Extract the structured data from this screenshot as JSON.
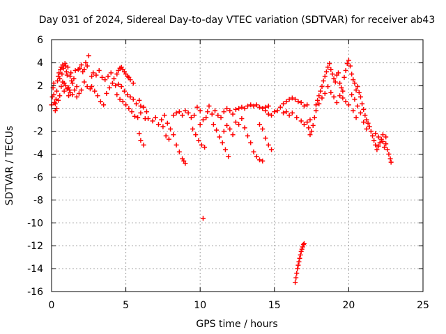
{
  "chart_data": {
    "type": "scatter",
    "title": "Day 031 of 2024, Sidereal Day-to-day VTEC variation (SDTVAR) for receiver ab43",
    "xlabel": "GPS time / hours",
    "ylabel": "SDTVAR / TECUs",
    "xlim": [
      0,
      25
    ],
    "ylim": [
      -16,
      6
    ],
    "xticks": [
      0,
      5,
      10,
      15,
      20,
      25
    ],
    "xtick_labels": [
      "0",
      "5",
      "10",
      "15",
      "20",
      "25"
    ],
    "yticks": [
      -16,
      -14,
      -12,
      -10,
      -8,
      -6,
      -4,
      -2,
      0,
      2,
      4,
      6
    ],
    "ytick_labels": [
      "-16",
      "-14",
      "-12",
      "-10",
      "-8",
      "-6",
      "-4",
      "-2",
      "0",
      "2",
      "4",
      "6"
    ],
    "grid": true,
    "marker": "+",
    "color": "#ff0000",
    "series": [
      {
        "name": "SDTVAR",
        "points": [
          [
            0.0,
            0.3
          ],
          [
            0.05,
            1.0
          ],
          [
            0.1,
            1.8
          ],
          [
            0.15,
            2.2
          ],
          [
            0.2,
            0.5
          ],
          [
            0.25,
            -0.2
          ],
          [
            0.3,
            0.8
          ],
          [
            0.35,
            1.5
          ],
          [
            0.4,
            2.4
          ],
          [
            0.45,
            2.8
          ],
          [
            0.5,
            3.1
          ],
          [
            0.55,
            2.6
          ],
          [
            0.6,
            3.4
          ],
          [
            0.65,
            3.6
          ],
          [
            0.7,
            3.0
          ],
          [
            0.75,
            3.8
          ],
          [
            0.8,
            3.5
          ],
          [
            0.85,
            2.2
          ],
          [
            0.9,
            3.9
          ],
          [
            0.95,
            3.7
          ],
          [
            1.0,
            3.2
          ],
          [
            1.05,
            2.9
          ],
          [
            1.1,
            3.6
          ],
          [
            1.15,
            1.8
          ],
          [
            1.2,
            1.6
          ],
          [
            1.25,
            2.8
          ],
          [
            1.3,
            3.1
          ],
          [
            1.35,
            2.4
          ],
          [
            1.4,
            2.2
          ],
          [
            1.5,
            2.6
          ],
          [
            1.6,
            3.3
          ],
          [
            1.7,
            1.9
          ],
          [
            1.8,
            3.4
          ],
          [
            1.9,
            3.5
          ],
          [
            2.0,
            3.8
          ],
          [
            2.1,
            3.2
          ],
          [
            2.2,
            3.4
          ],
          [
            2.3,
            4.0
          ],
          [
            2.4,
            3.7
          ],
          [
            2.5,
            4.6
          ],
          [
            0.15,
            1.2
          ],
          [
            0.25,
            0.4
          ],
          [
            0.35,
            0.0
          ],
          [
            0.45,
            0.7
          ],
          [
            0.55,
            1.1
          ],
          [
            0.65,
            1.9
          ],
          [
            0.75,
            2.3
          ],
          [
            0.85,
            1.5
          ],
          [
            0.95,
            2.0
          ],
          [
            1.05,
            1.7
          ],
          [
            1.15,
            1.1
          ],
          [
            1.25,
            1.4
          ],
          [
            1.4,
            1.2
          ],
          [
            1.55,
            1.6
          ],
          [
            1.7,
            1.0
          ],
          [
            1.85,
            1.3
          ],
          [
            2.0,
            1.6
          ],
          [
            2.2,
            2.3
          ],
          [
            2.4,
            1.9
          ],
          [
            2.6,
            1.7
          ],
          [
            2.7,
            2.8
          ],
          [
            2.8,
            3.1
          ],
          [
            3.0,
            2.9
          ],
          [
            3.2,
            3.3
          ],
          [
            3.4,
            2.7
          ],
          [
            3.6,
            2.5
          ],
          [
            3.8,
            2.8
          ],
          [
            4.0,
            3.1
          ],
          [
            4.2,
            2.6
          ],
          [
            4.4,
            3.0
          ],
          [
            4.5,
            3.3
          ],
          [
            4.6,
            3.5
          ],
          [
            4.7,
            3.6
          ],
          [
            4.8,
            3.4
          ],
          [
            4.9,
            3.2
          ],
          [
            5.0,
            3.0
          ],
          [
            5.1,
            2.8
          ],
          [
            5.2,
            2.7
          ],
          [
            5.3,
            2.5
          ],
          [
            5.5,
            2.2
          ],
          [
            2.7,
            1.9
          ],
          [
            2.9,
            1.5
          ],
          [
            3.1,
            1.1
          ],
          [
            3.3,
            0.6
          ],
          [
            3.5,
            0.3
          ],
          [
            3.7,
            1.3
          ],
          [
            3.9,
            1.8
          ],
          [
            4.1,
            2.2
          ],
          [
            4.3,
            2.0
          ],
          [
            4.5,
            2.1
          ],
          [
            4.7,
            1.9
          ],
          [
            4.9,
            1.5
          ],
          [
            5.1,
            1.2
          ],
          [
            5.3,
            1.0
          ],
          [
            5.5,
            0.8
          ],
          [
            5.7,
            0.4
          ],
          [
            5.9,
            0.7
          ],
          [
            6.0,
            0.2
          ],
          [
            6.2,
            0.1
          ],
          [
            6.4,
            -0.3
          ],
          [
            4.4,
            1.2
          ],
          [
            4.6,
            0.8
          ],
          [
            4.8,
            0.6
          ],
          [
            5.0,
            0.3
          ],
          [
            5.2,
            0.0
          ],
          [
            5.4,
            -0.3
          ],
          [
            5.6,
            -0.7
          ],
          [
            5.8,
            -0.8
          ],
          [
            6.0,
            -0.4
          ],
          [
            6.3,
            -0.9
          ],
          [
            5.9,
            -2.2
          ],
          [
            6.0,
            -2.8
          ],
          [
            6.2,
            -3.2
          ],
          [
            6.5,
            -0.9
          ],
          [
            6.8,
            -1.1
          ],
          [
            7.0,
            -0.8
          ],
          [
            7.2,
            -1.4
          ],
          [
            7.4,
            -1.0
          ],
          [
            7.6,
            -0.6
          ],
          [
            7.8,
            -1.3
          ],
          [
            7.5,
            -1.6
          ],
          [
            7.7,
            -2.4
          ],
          [
            7.9,
            -2.7
          ],
          [
            8.0,
            -1.8
          ],
          [
            8.2,
            -2.3
          ],
          [
            8.4,
            -3.2
          ],
          [
            8.6,
            -3.8
          ],
          [
            8.8,
            -4.4
          ],
          [
            9.0,
            -4.8
          ],
          [
            8.9,
            -4.6
          ],
          [
            8.2,
            -0.6
          ],
          [
            8.4,
            -0.4
          ],
          [
            8.6,
            -0.3
          ],
          [
            8.8,
            -0.6
          ],
          [
            9.0,
            -0.2
          ],
          [
            9.2,
            -0.4
          ],
          [
            9.4,
            -0.8
          ],
          [
            9.6,
            -0.6
          ],
          [
            9.8,
            0.1
          ],
          [
            10.0,
            -0.2
          ],
          [
            9.5,
            -1.8
          ],
          [
            9.7,
            -2.3
          ],
          [
            9.9,
            -2.8
          ],
          [
            10.1,
            -3.2
          ],
          [
            10.3,
            -3.4
          ],
          [
            10.0,
            -1.4
          ],
          [
            10.2,
            -1.0
          ],
          [
            10.4,
            -0.8
          ],
          [
            10.5,
            -0.3
          ],
          [
            10.6,
            0.2
          ],
          [
            10.8,
            -0.5
          ],
          [
            11.0,
            -0.2
          ],
          [
            11.2,
            -0.6
          ],
          [
            11.4,
            -0.8
          ],
          [
            11.6,
            -0.3
          ],
          [
            11.8,
            0.0
          ],
          [
            12.0,
            -0.2
          ],
          [
            12.2,
            -0.5
          ],
          [
            12.4,
            -0.1
          ],
          [
            12.6,
            0.0
          ],
          [
            10.9,
            -1.4
          ],
          [
            11.1,
            -1.9
          ],
          [
            11.3,
            -2.5
          ],
          [
            11.5,
            -3.0
          ],
          [
            11.7,
            -3.6
          ],
          [
            11.9,
            -4.2
          ],
          [
            11.6,
            -2.0
          ],
          [
            11.8,
            -1.5
          ],
          [
            12.0,
            -1.8
          ],
          [
            12.2,
            -2.3
          ],
          [
            12.4,
            -1.2
          ],
          [
            12.6,
            -1.4
          ],
          [
            12.8,
            -0.9
          ],
          [
            13.0,
            -1.7
          ],
          [
            13.2,
            -2.4
          ],
          [
            13.4,
            -3.0
          ],
          [
            13.6,
            -3.8
          ],
          [
            13.8,
            -4.2
          ],
          [
            14.0,
            -4.5
          ],
          [
            14.2,
            -4.6
          ],
          [
            12.8,
            0.1
          ],
          [
            13.0,
            0.0
          ],
          [
            13.2,
            0.2
          ],
          [
            13.4,
            0.3
          ],
          [
            13.6,
            0.2
          ],
          [
            13.8,
            0.3
          ],
          [
            14.0,
            0.1
          ],
          [
            14.2,
            0.0
          ],
          [
            14.4,
            0.1
          ],
          [
            14.6,
            0.2
          ],
          [
            14.0,
            -1.4
          ],
          [
            14.2,
            -1.8
          ],
          [
            14.4,
            -2.6
          ],
          [
            14.6,
            -3.2
          ],
          [
            14.8,
            -3.6
          ],
          [
            14.4,
            -0.2
          ],
          [
            14.6,
            -0.5
          ],
          [
            14.8,
            -0.6
          ],
          [
            15.0,
            -0.3
          ],
          [
            15.2,
            -0.2
          ],
          [
            15.4,
            0.1
          ],
          [
            15.6,
            0.4
          ],
          [
            15.8,
            0.6
          ],
          [
            16.0,
            0.8
          ],
          [
            16.2,
            0.9
          ],
          [
            16.4,
            0.8
          ],
          [
            16.6,
            0.6
          ],
          [
            16.8,
            0.5
          ],
          [
            17.0,
            0.2
          ],
          [
            17.2,
            0.3
          ],
          [
            15.6,
            -0.4
          ],
          [
            15.8,
            -0.3
          ],
          [
            16.0,
            -0.6
          ],
          [
            16.2,
            -0.4
          ],
          [
            16.5,
            -0.8
          ],
          [
            16.8,
            -1.1
          ],
          [
            17.0,
            -1.4
          ],
          [
            17.2,
            -1.2
          ],
          [
            17.4,
            -1.0
          ],
          [
            17.5,
            -2.0
          ],
          [
            17.3,
            -1.7
          ],
          [
            17.4,
            -2.3
          ],
          [
            17.6,
            -1.5
          ],
          [
            17.7,
            -0.8
          ],
          [
            17.8,
            0.3
          ],
          [
            17.9,
            0.7
          ],
          [
            18.0,
            1.1
          ],
          [
            18.1,
            1.5
          ],
          [
            18.2,
            1.9
          ],
          [
            18.3,
            2.4
          ],
          [
            18.4,
            2.8
          ],
          [
            18.5,
            3.2
          ],
          [
            18.6,
            3.6
          ],
          [
            18.7,
            3.9
          ],
          [
            18.8,
            3.4
          ],
          [
            18.9,
            3.0
          ],
          [
            19.0,
            2.6
          ],
          [
            19.1,
            2.3
          ],
          [
            19.2,
            2.9
          ],
          [
            19.3,
            3.1
          ],
          [
            19.4,
            2.2
          ],
          [
            19.5,
            1.8
          ],
          [
            19.6,
            1.5
          ],
          [
            19.7,
            2.7
          ],
          [
            19.8,
            3.3
          ],
          [
            19.9,
            3.9
          ],
          [
            20.0,
            4.2
          ],
          [
            20.1,
            3.7
          ],
          [
            20.2,
            3.0
          ],
          [
            20.3,
            2.5
          ],
          [
            20.4,
            2.2
          ],
          [
            20.5,
            1.6
          ],
          [
            20.6,
            1.9
          ],
          [
            20.7,
            1.4
          ],
          [
            20.8,
            1.0
          ],
          [
            20.9,
            0.4
          ],
          [
            21.0,
            -0.1
          ],
          [
            21.1,
            -0.6
          ],
          [
            21.2,
            -1.0
          ],
          [
            21.3,
            -1.3
          ],
          [
            21.4,
            -1.6
          ],
          [
            21.5,
            -2.0
          ],
          [
            21.6,
            -2.4
          ],
          [
            21.7,
            -2.8
          ],
          [
            21.8,
            -3.2
          ],
          [
            21.9,
            -3.6
          ],
          [
            22.0,
            -3.3
          ],
          [
            22.1,
            -3.0
          ],
          [
            22.2,
            -2.7
          ],
          [
            22.3,
            -2.9
          ],
          [
            22.4,
            -3.4
          ],
          [
            22.5,
            -3.1
          ],
          [
            22.6,
            -3.6
          ],
          [
            22.7,
            -4.0
          ],
          [
            22.8,
            -4.4
          ],
          [
            22.85,
            -4.7
          ],
          [
            22.5,
            -2.5
          ],
          [
            22.3,
            -2.3
          ],
          [
            22.0,
            -2.5
          ],
          [
            21.8,
            -2.2
          ],
          [
            18.6,
            1.9
          ],
          [
            18.8,
            1.4
          ],
          [
            19.0,
            1.0
          ],
          [
            19.2,
            0.5
          ],
          [
            19.4,
            1.1
          ],
          [
            19.6,
            0.9
          ],
          [
            19.8,
            0.6
          ],
          [
            20.0,
            0.3
          ],
          [
            20.2,
            1.2
          ],
          [
            20.4,
            0.8
          ],
          [
            20.6,
            0.2
          ],
          [
            20.8,
            -0.4
          ],
          [
            21.0,
            -1.2
          ],
          [
            21.2,
            -1.8
          ],
          [
            18.4,
            1.3
          ],
          [
            18.2,
            0.9
          ],
          [
            18.0,
            0.4
          ],
          [
            17.8,
            -0.2
          ],
          [
            20.3,
            -0.2
          ],
          [
            20.5,
            -0.8
          ],
          [
            10.2,
            -9.6
          ],
          [
            16.4,
            -15.2
          ],
          [
            16.45,
            -14.8
          ],
          [
            16.5,
            -14.4
          ],
          [
            16.55,
            -14.0
          ],
          [
            16.6,
            -13.7
          ],
          [
            16.65,
            -13.4
          ],
          [
            16.7,
            -13.1
          ],
          [
            16.75,
            -12.8
          ],
          [
            16.8,
            -12.5
          ],
          [
            16.85,
            -12.3
          ],
          [
            16.9,
            -12.1
          ],
          [
            16.95,
            -11.9
          ],
          [
            17.0,
            -11.8
          ]
        ]
      }
    ]
  }
}
